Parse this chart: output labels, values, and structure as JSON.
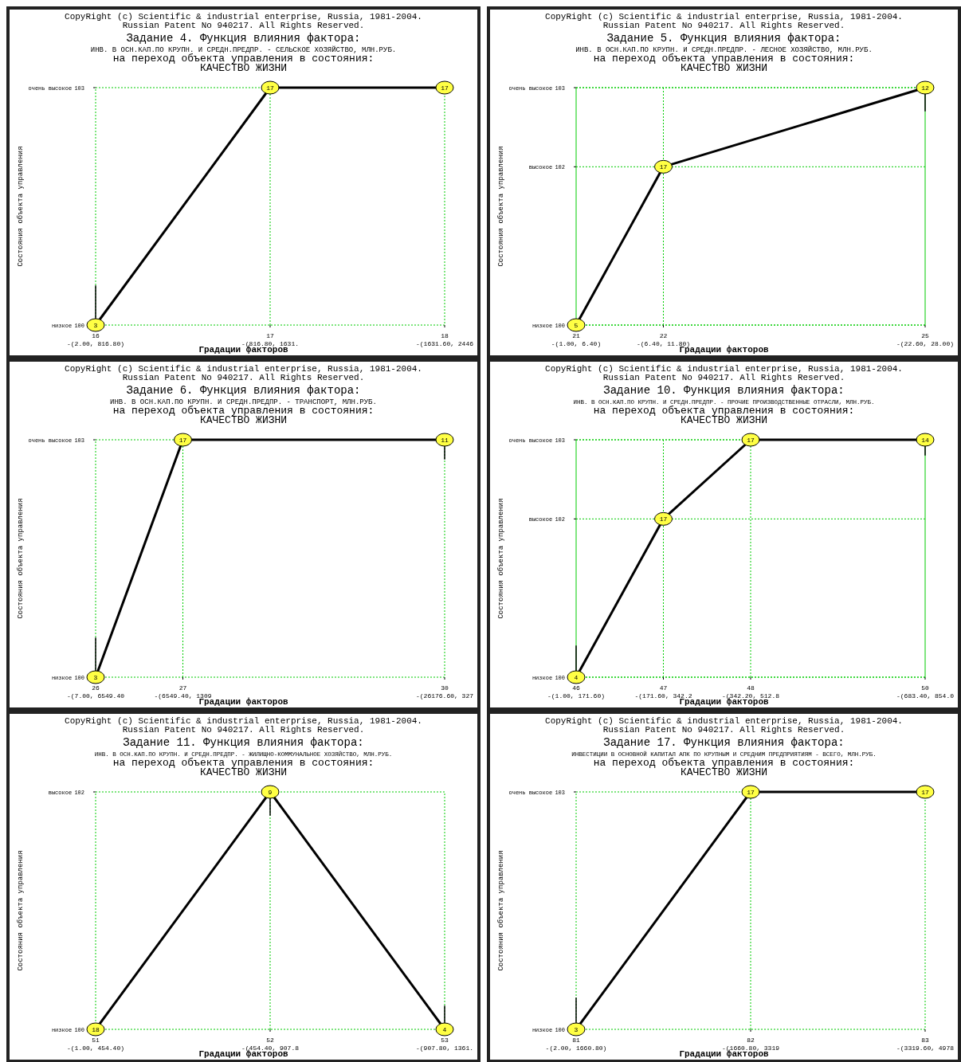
{
  "chart_data": [
    {
      "type": "line",
      "title": "Задание 4. Функция влияния фактора:",
      "subtitle": "ИНВ. В ОСН.КАП.ПО КРУПН. И СРЕДН.ПРЕДПР. - СЕЛЬСКОЕ ХОЗЯЙСТВО, МЛН.РУБ.\nна переход объекта управления в состояния:\nКАЧЕСТВО ЖИЗНИ",
      "annotations": [
        "CopyRight (c) Scientific & industrial enterprise, Russia, 1981-2004.",
        "Russian Patent No 940217. All Rights Reserved.",
        "низкое",
        "очень высокое",
        "-(2.00, 816.80)",
        "-(816.80, 1631.",
        "-(1631.60, 2446",
        "3",
        "17",
        "17"
      ],
      "xlabel": "Градации факторов",
      "ylabel": "Состояния объекта управления",
      "xlim": [
        16,
        18
      ],
      "xticks": [
        16,
        17,
        18
      ],
      "ylim": [
        100,
        103
      ],
      "yticks": [
        100,
        103
      ],
      "ref_lines": [
        {
          "axis": "x",
          "value": 17,
          "color": "#00cc00",
          "line_style": "dotted"
        }
      ],
      "marker": "circle",
      "line_style": "solid",
      "series": [
        {
          "color": "#000000",
          "x": [
            16,
            17,
            18
          ],
          "values": [
            100,
            103,
            103
          ],
          "errors": [
            [
              100,
              100.5
            ],
            null,
            null
          ]
        }
      ]
    },
    {
      "type": "line",
      "title": "Задание 5. Функция влияния фактора:",
      "subtitle": "ИНВ. В ОСН.КАП.ПО КРУПН. И СРЕДН.ПРЕДПР. - ЛЕСНОЕ ХОЗЯЙСТВО, МЛН.РУБ.\nна переход объекта управления в состояния:\nКАЧЕСТВО ЖИЗНИ",
      "annotations": [
        "CopyRight (c) Scientific & industrial enterprise, Russia, 1981-2004.",
        "Russian Patent No 940217. All Rights Reserved.",
        "низкое",
        "высокое",
        "очень высокое",
        "-(1.00, 6.40)",
        "-(6.40, 11.80)",
        "-(22.60, 28.00)",
        "5",
        "17",
        "12"
      ],
      "xlabel": "Градации факторов",
      "ylabel": "Состояния объекта управления",
      "xlim": [
        21,
        25
      ],
      "xticks": [
        21,
        22,
        25
      ],
      "ylim": [
        100,
        103
      ],
      "yticks": [
        100,
        102,
        103
      ],
      "grid": true,
      "marker": "circle",
      "line_style": "solid",
      "series": [
        {
          "color": "#000000",
          "x": [
            21,
            22,
            25
          ],
          "values": [
            100,
            102,
            103
          ],
          "errors": [
            null,
            null,
            [
              102.7,
              103
            ]
          ]
        }
      ]
    },
    {
      "type": "line",
      "title": "Задание 6. Функция влияния фактора:",
      "subtitle": "ИНВ. В ОСН.КАП.ПО КРУПН. И СРЕДН.ПРЕДПР. - ТРАНСПОРТ, МЛН.РУБ.\nна переход объекта управления в состояния:\nКАЧЕСТВО ЖИЗНИ",
      "annotations": [
        "CopyRight (c) Scientific & industrial enterprise, Russia, 1981-2004.",
        "Russian Patent No 940217. All Rights Reserved.",
        "низкое",
        "очень высокое",
        "-(7.00, 6549.40",
        "-(6549.40, 1309",
        "-(26176.60, 327",
        "3",
        "17",
        "11"
      ],
      "xlabel": "Градации факторов",
      "ylabel": "Состояния объекта управления",
      "xlim": [
        26,
        30
      ],
      "xticks": [
        26,
        27,
        30
      ],
      "ylim": [
        100,
        103
      ],
      "yticks": [
        100,
        103
      ],
      "ref_lines": [
        {
          "axis": "x",
          "value": 27,
          "color": "#00cc00",
          "line_style": "dotted"
        }
      ],
      "marker": "circle",
      "line_style": "solid",
      "series": [
        {
          "color": "#000000",
          "x": [
            26,
            27,
            30
          ],
          "values": [
            100,
            103,
            103
          ],
          "errors": [
            [
              100,
              100.5
            ],
            null,
            [
              102.75,
              103
            ]
          ]
        }
      ]
    },
    {
      "type": "line",
      "title": "Задание 10. Функция влияния фактора:",
      "subtitle": "ИНВ. В ОСН.КАП.ПО КРУПН. И СРЕДН.ПРЕДПР. - ПРОЧИЕ ПРОИЗВОДСТВЕННЫЕ ОТРАСЛИ, МЛН.РУБ.\nна переход объекта управления в состояния:\nКАЧЕСТВО ЖИЗНИ",
      "annotations": [
        "CopyRight (c) Scientific & industrial enterprise, Russia, 1981-2004.",
        "Russian Patent No 940217. All Rights Reserved.",
        "низкое",
        "высокое",
        "очень высокое",
        "-(1.00, 171.60)",
        "-(171.60, 342.2",
        "-(342.20, 512.8",
        "-(683.40, 854.0",
        "4",
        "17",
        "17",
        "14"
      ],
      "xlabel": "Градации факторов",
      "ylabel": "Состояния объекта управления",
      "xlim": [
        46,
        50
      ],
      "xticks": [
        46,
        47,
        48,
        50
      ],
      "ylim": [
        100,
        103
      ],
      "yticks": [
        100,
        102,
        103
      ],
      "grid": true,
      "marker": "circle",
      "line_style": "solid",
      "series": [
        {
          "color": "#000000",
          "x": [
            46,
            47,
            48,
            50
          ],
          "values": [
            100,
            102,
            103,
            103
          ],
          "errors": [
            [
              100,
              100.4
            ],
            null,
            null,
            [
              102.8,
              103
            ]
          ]
        }
      ]
    },
    {
      "type": "line",
      "title": "Задание 11. Функция влияния фактора:",
      "subtitle": "ИНВ. В ОСН.КАП.ПО КРУПН. И СРЕДН.ПРЕДПР. - ЖИЛИЩНО-КОММУНАЛЬНОЕ ХОЗЯЙСТВО, МЛН.РУБ.\nна переход объекта управления в состояния:\nКАЧЕСТВО ЖИЗНИ",
      "annotations": [
        "CopyRight (c) Scientific & industrial enterprise, Russia, 1981-2004.",
        "Russian Patent No 940217. All Rights Reserved.",
        "низкое",
        "высокое",
        "-(1.00, 454.40)",
        "-(454.40, 907.8",
        "-(907.80, 1361.",
        "18",
        "9",
        "4"
      ],
      "xlabel": "Градации факторов",
      "ylabel": "Состояния объекта управления",
      "xlim": [
        51,
        53
      ],
      "xticks": [
        51,
        52,
        53
      ],
      "ylim": [
        100,
        102
      ],
      "yticks": [
        100,
        102
      ],
      "ref_lines": [
        {
          "axis": "x",
          "value": 52,
          "color": "#00cc00",
          "line_style": "dotted"
        }
      ],
      "marker": "circle",
      "line_style": "solid",
      "series": [
        {
          "color": "#000000",
          "x": [
            51,
            52,
            53
          ],
          "values": [
            100,
            102,
            100
          ],
          "errors": [
            null,
            [
              101.8,
              102
            ],
            [
              100,
              100.2
            ]
          ]
        }
      ]
    },
    {
      "type": "line",
      "title": "Задание 17. Функция влияния фактора:",
      "subtitle": "ИНВЕСТИЦИИ В ОСНОВНОЙ КАПИТАЛ АПК ПО КРУПНЫМ И СРЕДНИМ ПРЕДПРИЯТИЯМ - ВСЕГО, МЛН.РУБ.\nна переход объекта управления в состояния:\nКАЧЕСТВО ЖИЗНИ",
      "annotations": [
        "CopyRight (c) Scientific & industrial enterprise, Russia, 1981-2004.",
        "Russian Patent No 940217. All Rights Reserved.",
        "низкое",
        "очень высокое",
        "-(2.00, 1660.80)",
        "-(1660.80, 3319",
        "-(3319.60, 4978",
        "3",
        "17",
        "17"
      ],
      "xlabel": "Градации факторов",
      "ylabel": "Состояния объекта управления",
      "xlim": [
        81,
        83
      ],
      "xticks": [
        81,
        82,
        83
      ],
      "ylim": [
        100,
        103
      ],
      "yticks": [
        100,
        103
      ],
      "ref_lines": [
        {
          "axis": "x",
          "value": 82,
          "color": "#00cc00",
          "line_style": "dotted"
        }
      ],
      "marker": "circle",
      "line_style": "solid",
      "series": [
        {
          "color": "#000000",
          "x": [
            81,
            82,
            83
          ],
          "values": [
            100,
            103,
            103
          ],
          "errors": [
            [
              100,
              100.4
            ],
            null,
            null
          ]
        }
      ]
    }
  ]
}
